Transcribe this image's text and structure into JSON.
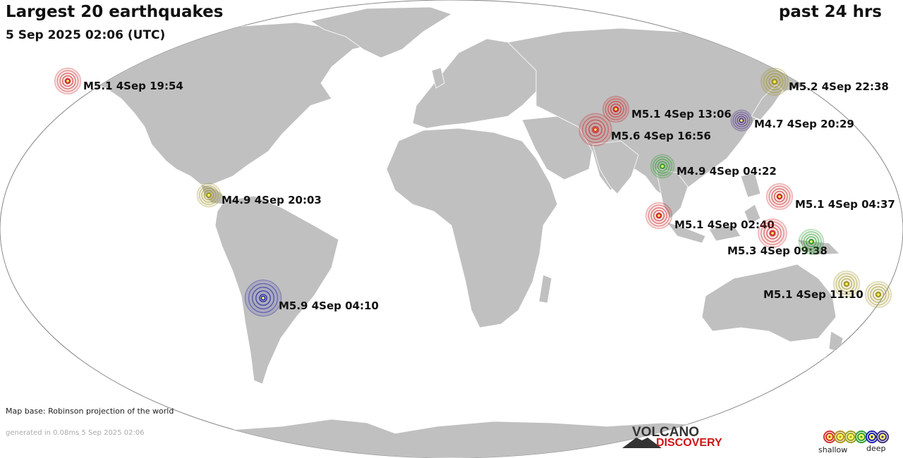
{
  "header": {
    "title": "Largest 20 earthquakes",
    "subtitle": "5 Sep 2025 02:06 (UTC)",
    "period": "past 24 hrs"
  },
  "footer": {
    "map_base": "Map base: Robinson projection of the world",
    "generated": "generated in 0.08ms  5 Sep 2025 02:06"
  },
  "logo": {
    "top": "VOLCANO",
    "bottom": "DISCOVERY"
  },
  "legend": {
    "shallow": "shallow",
    "deep": "deep",
    "colors": [
      "#d03030",
      "#b09020",
      "#a0a020",
      "#30a030",
      "#2020b0",
      "#403080"
    ]
  },
  "colors": {
    "ocean": "#ffffff",
    "land": "#c0c0c0",
    "border": "#ffffff",
    "frame": "#888888",
    "depth_red": "#cc2222",
    "depth_olive": "#a09020",
    "depth_green": "#2e9a2e",
    "depth_blue": "#1a1aa8",
    "depth_purple": "#4a2a80"
  },
  "earthquakes": [
    {
      "label": "M5.1  4Sep 19:54",
      "depth_color": "#cc2222",
      "magnitude": 5.1,
      "lat": 51.5,
      "lon": -178.5
    },
    {
      "label": "M5.2  4Sep 22:38",
      "depth_color": "#a09020",
      "magnitude": 5.2,
      "lat": 49.5,
      "lon": 155.0
    },
    {
      "label": "M5.1  4Sep 13:06",
      "depth_color": "#cc2222",
      "magnitude": 5.1,
      "lat": 36.5,
      "lon": 71.0
    },
    {
      "label": "M4.7  4Sep 20:29",
      "depth_color": "#4a2a80",
      "magnitude": 4.7,
      "lat": 33.5,
      "lon": 131.5
    },
    {
      "label": "M5.6  4Sep 16:56",
      "depth_color": "#cc2222",
      "magnitude": 5.6,
      "lat": 34.5,
      "lon": 70.5
    },
    {
      "label": "M4.9  4Sep 04:22",
      "depth_color": "#2e9a2e",
      "magnitude": 4.9,
      "lat": 22.5,
      "lon": 95.0
    },
    {
      "label": "M4.9  4Sep 20:03",
      "depth_color": "#a09020",
      "magnitude": 4.9,
      "lat": 11.5,
      "lon": -86.5
    },
    {
      "label": "M5.1  4Sep 04:37",
      "depth_color": "#cc2222",
      "magnitude": 5.1,
      "lat": 12.0,
      "lon": 143.0
    },
    {
      "label": "M5.1  4Sep 02:40",
      "depth_color": "#cc2222",
      "magnitude": 5.1,
      "lat": 5.0,
      "lon": 95.5
    },
    {
      "label": "M5.3  4Sep 09:38",
      "depth_color": "#cc2222",
      "magnitude": 5.3,
      "lat": -1.5,
      "lon": 126.5
    },
    {
      "label": "",
      "depth_color": "#2e9a2e",
      "magnitude": 5.0,
      "lat": -3.5,
      "lon": 135.5
    },
    {
      "label": "M5.9  4Sep 04:10",
      "depth_color": "#1a1aa8",
      "magnitude": 5.9,
      "lat": -23.5,
      "lon": -67.0
    },
    {
      "label": "M5.1  4Sep 11:10",
      "depth_color": "#a09020",
      "magnitude": 5.1,
      "lat": -20.5,
      "lon": 169.0
    },
    {
      "label": "",
      "depth_color": "#a09020",
      "magnitude": 5.1,
      "lat": -22.0,
      "lon": 178.5
    }
  ]
}
